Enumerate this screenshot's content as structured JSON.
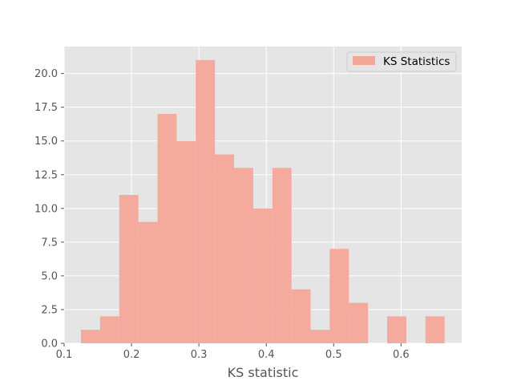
{
  "chart_data": {
    "type": "bar",
    "title": "",
    "xlabel": "KS statistic",
    "ylabel": "",
    "xlim": [
      0.1,
      0.69
    ],
    "ylim": [
      0,
      22
    ],
    "grid": true,
    "legend": {
      "placement": "top-right",
      "entries": [
        "KS Statistics"
      ]
    },
    "x_ticks": [
      0.1,
      0.2,
      0.3,
      0.4,
      0.5,
      0.6
    ],
    "x_tick_labels": [
      "0.1",
      "0.2",
      "0.3",
      "0.4",
      "0.5",
      "0.6"
    ],
    "y_ticks": [
      0.0,
      2.5,
      5.0,
      7.5,
      10.0,
      12.5,
      15.0,
      17.5,
      20.0
    ],
    "y_tick_labels": [
      "0.0",
      "2.5",
      "5.0",
      "7.5",
      "10.0",
      "12.5",
      "15.0",
      "17.5",
      "20.0"
    ],
    "bin_edges": [
      0.125,
      0.1534,
      0.1818,
      0.2102,
      0.2386,
      0.267,
      0.2954,
      0.3238,
      0.3522,
      0.3806,
      0.409,
      0.4374,
      0.4658,
      0.4942,
      0.5226,
      0.551,
      0.5794,
      0.6078,
      0.6362,
      0.6646
    ],
    "counts": [
      1,
      2,
      11,
      9,
      17,
      15,
      21,
      14,
      13,
      10,
      13,
      4,
      1,
      7,
      3,
      0,
      2,
      0,
      2
    ],
    "series": [
      {
        "name": "KS Statistics",
        "color": "#f4a698"
      }
    ],
    "colors": {
      "background": "#e5e5e5",
      "grid": "#ffffff",
      "bar": "#f4a698"
    }
  }
}
